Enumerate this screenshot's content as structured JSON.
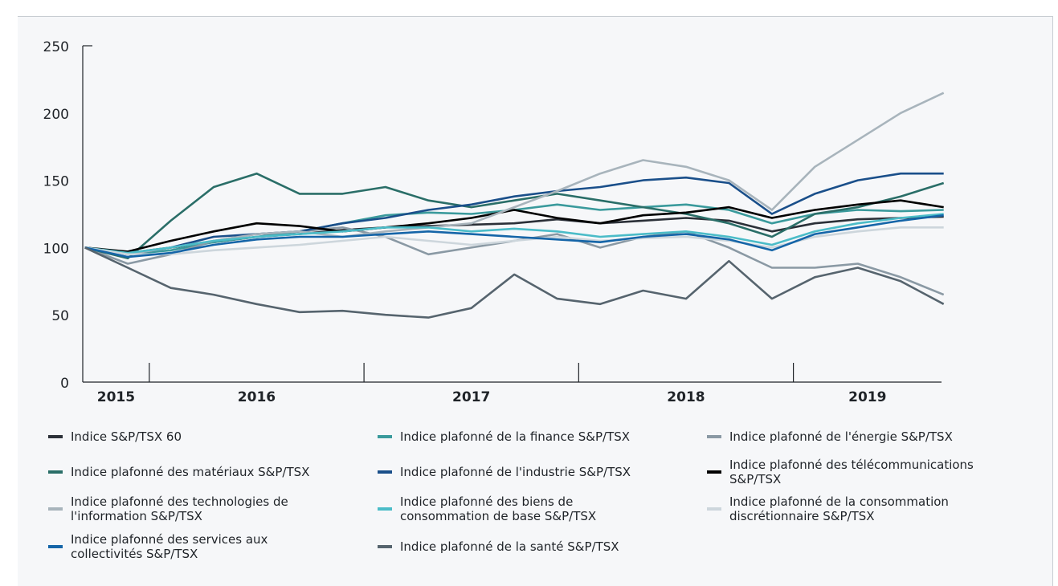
{
  "chart_data": {
    "type": "line",
    "x": [
      2015.7,
      2015.9,
      2016.1,
      2016.3,
      2016.5,
      2016.7,
      2016.9,
      2017.1,
      2017.3,
      2017.5,
      2017.7,
      2017.9,
      2018.1,
      2018.3,
      2018.5,
      2018.7,
      2018.9,
      2019.1,
      2019.3,
      2019.5,
      2019.7
    ],
    "xlim": [
      2015.69,
      2019.69
    ],
    "xticks": [
      2016,
      2017,
      2018,
      2019
    ],
    "years": [
      2015,
      2016,
      2017,
      2018,
      2019
    ],
    "ylim": [
      0,
      250
    ],
    "yticks": [
      0,
      50,
      100,
      150,
      200,
      250
    ],
    "grid": false,
    "series": [
      {
        "name": "Indice S&P/TSX 60",
        "color": "#2b3038",
        "values": [
          100,
          96,
          100,
          104,
          108,
          110,
          113,
          115,
          116,
          117,
          118,
          121,
          118,
          120,
          122,
          120,
          112,
          118,
          121,
          122,
          123
        ]
      },
      {
        "name": "Indice plafonné de la finance S&P/TSX",
        "color": "#3a9a9c",
        "values": [
          100,
          95,
          98,
          104,
          108,
          112,
          118,
          124,
          126,
          125,
          128,
          132,
          128,
          130,
          132,
          128,
          118,
          125,
          128,
          127,
          128
        ]
      },
      {
        "name": "Indice plafonné de l'énergie S&P/TSX",
        "color": "#8a99a4",
        "values": [
          100,
          88,
          95,
          105,
          110,
          112,
          115,
          108,
          95,
          100,
          105,
          110,
          100,
          108,
          112,
          100,
          85,
          85,
          88,
          78,
          65
        ]
      },
      {
        "name": "Indice plafonné des matériaux S&P/TSX",
        "color": "#2a6e68",
        "values": [
          100,
          92,
          120,
          145,
          155,
          140,
          140,
          145,
          135,
          130,
          135,
          140,
          135,
          130,
          125,
          118,
          108,
          125,
          130,
          138,
          148
        ]
      },
      {
        "name": "Indice plafonné de l'industrie S&P/TSX",
        "color": "#1a4f8a",
        "values": [
          100,
          95,
          100,
          108,
          110,
          112,
          118,
          122,
          128,
          132,
          138,
          142,
          145,
          150,
          152,
          148,
          125,
          140,
          150,
          155,
          155
        ]
      },
      {
        "name": "Indice plafonné des télécommunications S&P/TSX",
        "color": "#000000",
        "values": [
          100,
          97,
          105,
          112,
          118,
          116,
          112,
          115,
          118,
          122,
          128,
          122,
          118,
          124,
          126,
          130,
          122,
          128,
          132,
          135,
          130
        ]
      },
      {
        "name": "Indice plafonné des technologies de l'information S&P/TSX",
        "color": "#a8b4bc",
        "values": [
          100,
          95,
          100,
          105,
          110,
          112,
          108,
          112,
          115,
          118,
          130,
          142,
          155,
          165,
          160,
          150,
          128,
          160,
          180,
          200,
          215
        ]
      },
      {
        "name": "Indice plafonné des biens de consommation de base S&P/TSX",
        "color": "#4bbcc8",
        "values": [
          100,
          96,
          100,
          105,
          108,
          110,
          112,
          115,
          115,
          112,
          114,
          112,
          108,
          110,
          112,
          108,
          102,
          112,
          118,
          122,
          125
        ]
      },
      {
        "name": "Indice plafonné de la consommation discrétionnaire S&P/TSX",
        "color": "#cdd6dc",
        "values": [
          100,
          95,
          95,
          98,
          100,
          102,
          105,
          108,
          105,
          102,
          105,
          108,
          105,
          107,
          108,
          105,
          100,
          108,
          112,
          115,
          115
        ]
      },
      {
        "name": "Indice plafonné des services aux collectivités S&P/TSX",
        "color": "#1565a8",
        "values": [
          100,
          93,
          96,
          102,
          106,
          108,
          108,
          110,
          112,
          110,
          108,
          106,
          104,
          108,
          110,
          106,
          98,
          110,
          115,
          120,
          124
        ]
      },
      {
        "name": "Indice plafonné de la santé S&P/TSX",
        "color": "#56646e",
        "values": [
          100,
          85,
          70,
          65,
          58,
          52,
          53,
          50,
          48,
          55,
          80,
          62,
          58,
          68,
          62,
          90,
          62,
          78,
          85,
          75,
          58
        ]
      }
    ]
  }
}
